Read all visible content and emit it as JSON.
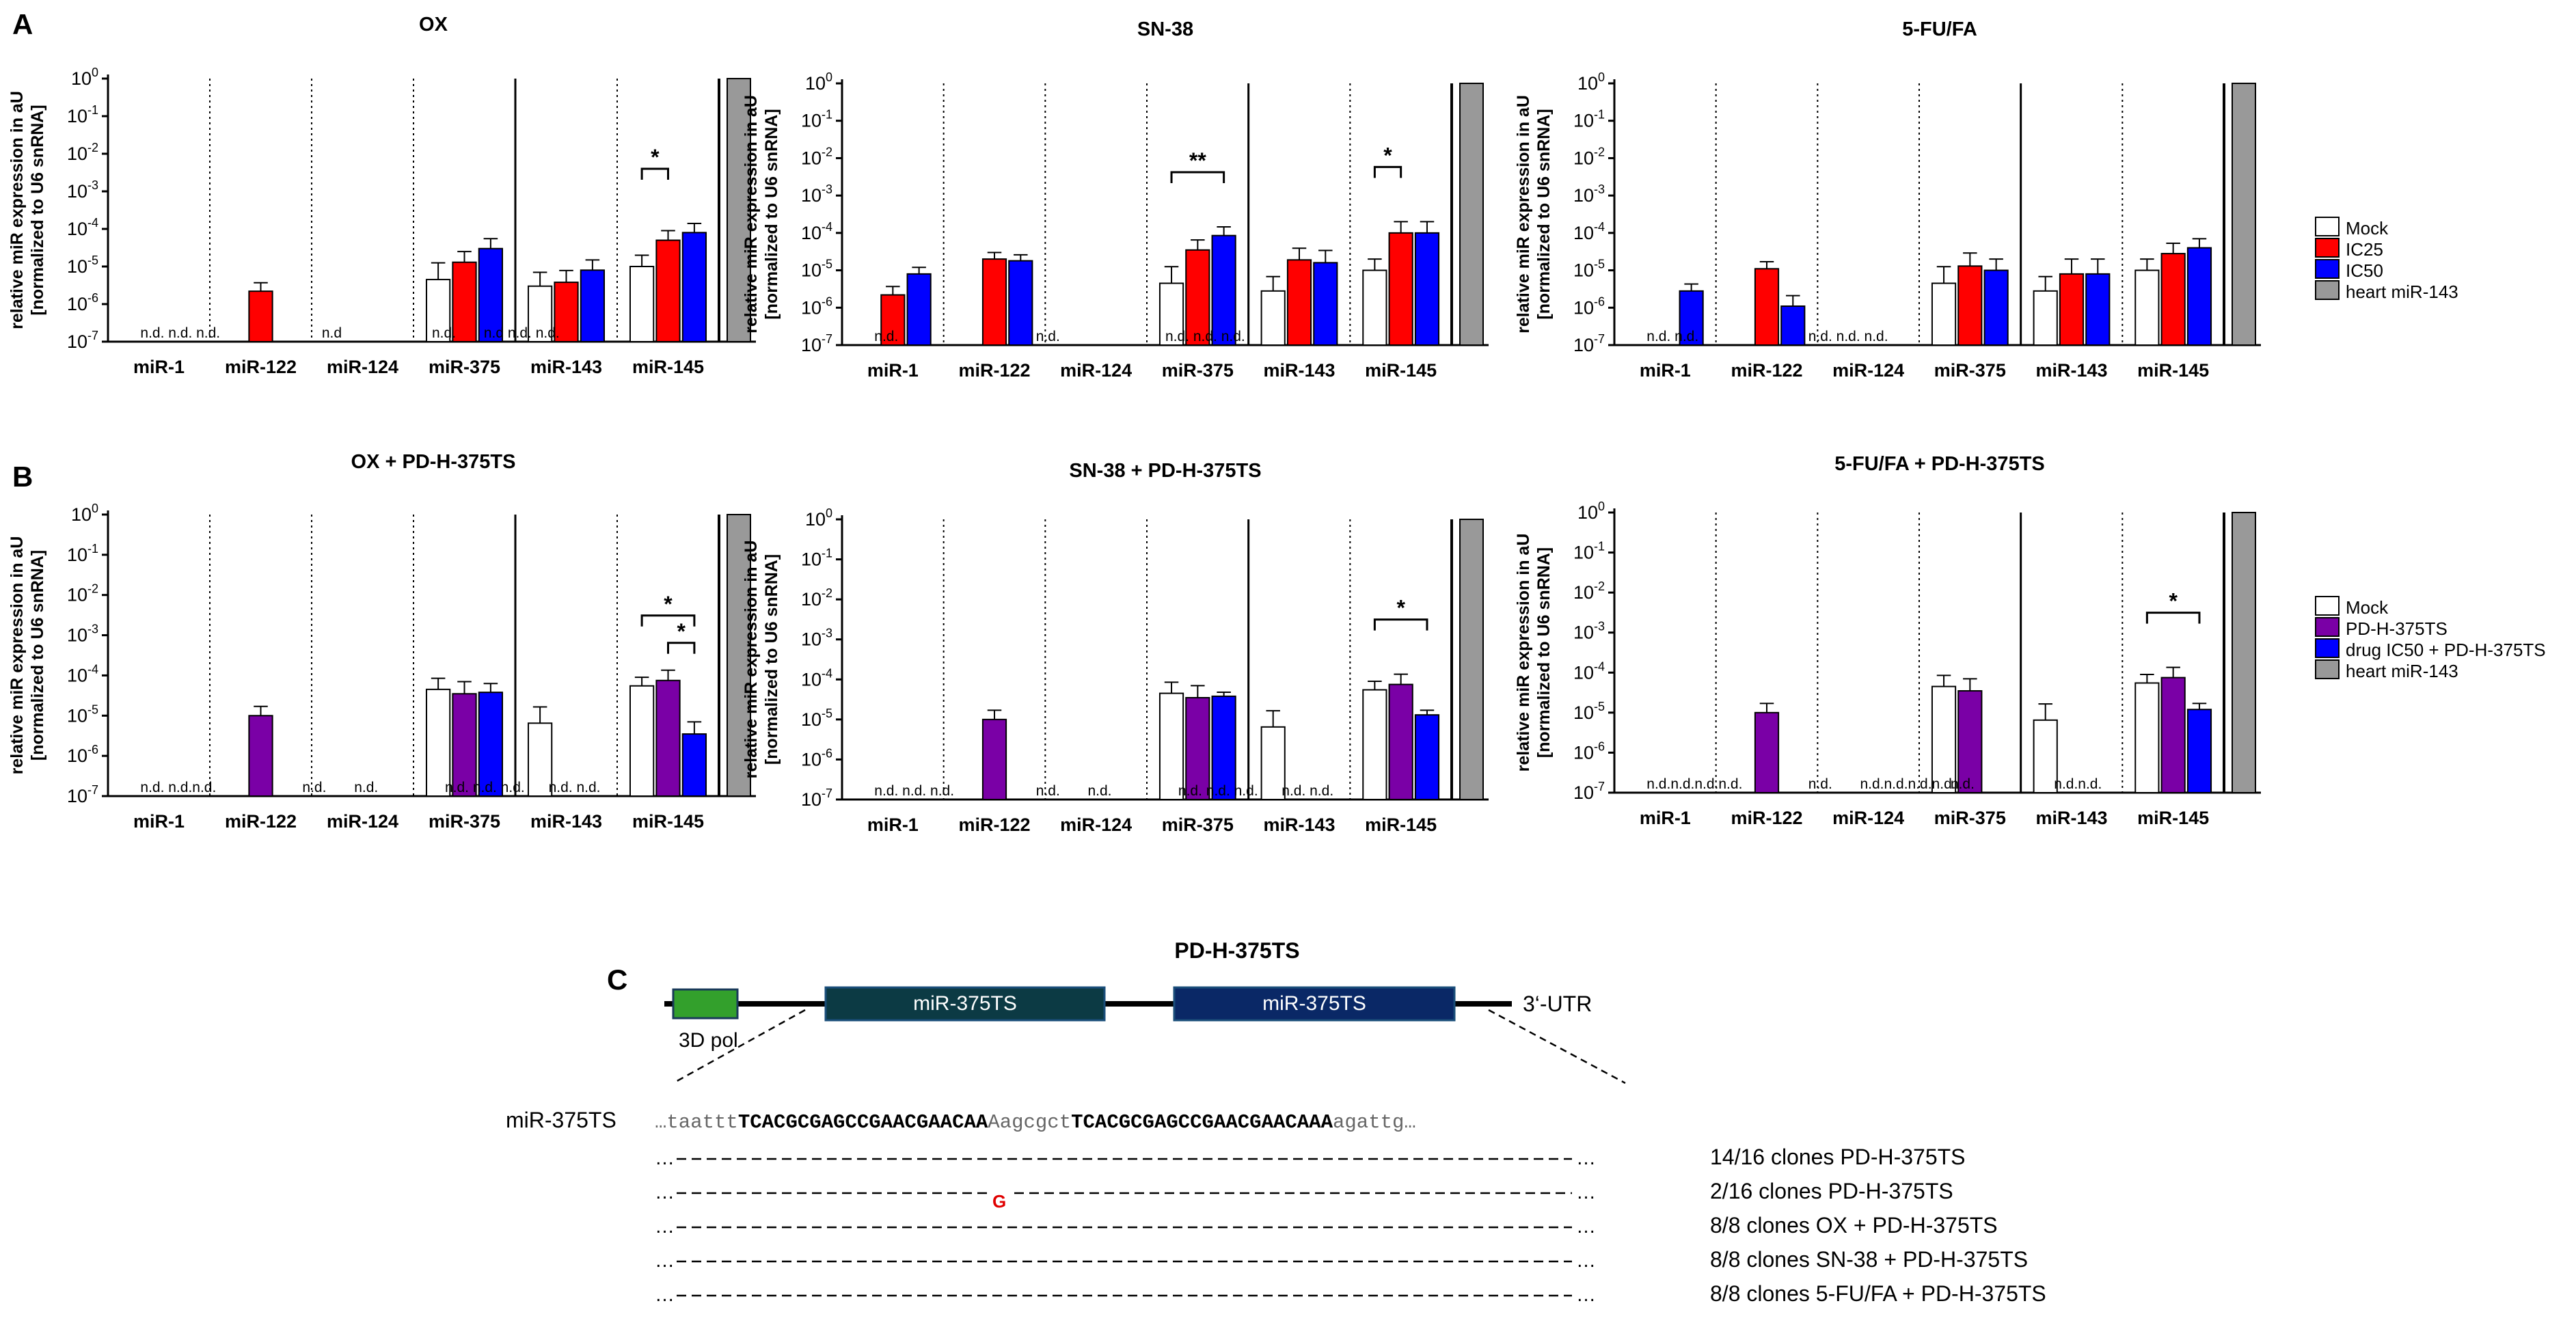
{
  "panel_letters": [
    "A",
    "B",
    "C"
  ],
  "ylabel_line1": "relative miR expression in aU",
  "ylabel_line2": "[normalized to U6 snRNA]",
  "y_tick_exponents": [
    "0",
    "-1",
    "-2",
    "-3",
    "-4",
    "-5",
    "-6",
    "-7"
  ],
  "y_tick_base": "10",
  "categories": [
    "miR-1",
    "miR-122",
    "miR-124",
    "miR-375",
    "miR-143",
    "miR-145"
  ],
  "nd_label": "n.d.",
  "legend_A": {
    "items": [
      "Mock",
      "IC25",
      "IC50",
      "heart miR-143"
    ],
    "colors": [
      "#ffffff",
      "#ff0000",
      "#0000ff",
      "#999999"
    ]
  },
  "legend_B": {
    "items": [
      "Mock",
      "PD-H-375TS",
      "drug IC50 + PD-H-375TS",
      "heart miR-143"
    ],
    "colors": [
      "#ffffff",
      "#7a00a6",
      "#0000ff",
      "#999999"
    ]
  },
  "chart_data": [
    {
      "type": "bar",
      "title": "OX",
      "categories": [
        "miR-1",
        "miR-122",
        "miR-124",
        "miR-375",
        "miR-143",
        "miR-145"
      ],
      "series": [
        {
          "name": "Mock",
          "values": [
            null,
            null,
            null,
            4.5e-06,
            3e-06,
            1e-05
          ],
          "errors": [
            null,
            null,
            null,
            8e-06,
            4e-06,
            1e-05
          ]
        },
        {
          "name": "IC25",
          "values": [
            null,
            2.2e-06,
            null,
            1.3e-05,
            3.8e-06,
            5e-05
          ],
          "errors": [
            null,
            1.5e-06,
            null,
            1.2e-05,
            4e-06,
            4e-05
          ]
        },
        {
          "name": "IC50",
          "values": [
            null,
            null,
            null,
            3e-05,
            8e-06,
            8e-05
          ],
          "errors": [
            null,
            null,
            null,
            2.5e-05,
            7e-06,
            6e-05
          ]
        }
      ],
      "reference": {
        "name": "heart miR-143",
        "value": 1
      },
      "nd_text": "n.d. n.d. n.d.|n.d|n.d.|n.d n.d. n.d.",
      "significance": [
        "*"
      ],
      "ylabel": "relative miR expression in aU [normalized to U6 snRNA]",
      "ylim": [
        1e-07,
        1
      ]
    },
    {
      "type": "bar",
      "title": "SN-38",
      "categories": [
        "miR-1",
        "miR-122",
        "miR-124",
        "miR-375",
        "miR-143",
        "miR-145"
      ],
      "series": [
        {
          "name": "Mock",
          "values": [
            null,
            null,
            null,
            4.5e-06,
            2.8e-06,
            1e-05
          ],
          "errors": [
            null,
            null,
            null,
            8e-06,
            4e-06,
            1e-05
          ]
        },
        {
          "name": "IC25",
          "values": [
            2.2e-06,
            2e-05,
            null,
            3.5e-05,
            1.9e-05,
            0.0001
          ],
          "errors": [
            1.5e-06,
            1e-05,
            null,
            3e-05,
            2e-05,
            0.0001
          ]
        },
        {
          "name": "IC50",
          "values": [
            8e-06,
            1.8e-05,
            null,
            8.5e-05,
            1.6e-05,
            0.0001
          ],
          "errors": [
            4e-06,
            8e-06,
            null,
            6e-05,
            1.8e-05,
            0.0001
          ]
        }
      ],
      "reference": {
        "name": "heart miR-143",
        "value": 1
      },
      "nd_text": "n.d.|n.d.|n.d. n.d. n.d.",
      "significance": [
        "**",
        "*"
      ],
      "ylabel": "relative miR expression in aU [normalized to U6 snRNA]",
      "ylim": [
        1e-07,
        1
      ]
    },
    {
      "type": "bar",
      "title": "5-FU/FA",
      "categories": [
        "miR-1",
        "miR-122",
        "miR-124",
        "miR-375",
        "miR-143",
        "miR-145"
      ],
      "series": [
        {
          "name": "Mock",
          "values": [
            null,
            null,
            null,
            4.5e-06,
            2.8e-06,
            1e-05
          ],
          "errors": [
            null,
            null,
            null,
            8e-06,
            4e-06,
            1e-05
          ]
        },
        {
          "name": "IC25",
          "values": [
            null,
            1.1e-05,
            null,
            1.3e-05,
            8e-06,
            2.8e-05
          ],
          "errors": [
            null,
            6e-06,
            null,
            1.6e-05,
            1.2e-05,
            2.5e-05
          ]
        },
        {
          "name": "IC50",
          "values": [
            2.8e-06,
            1.1e-06,
            null,
            1e-05,
            8e-06,
            4e-05
          ],
          "errors": [
            1.5e-06,
            1e-06,
            null,
            1e-05,
            1.2e-05,
            3e-05
          ]
        }
      ],
      "reference": {
        "name": "heart miR-143",
        "value": 1
      },
      "nd_text": "n.d. n.d.|n.d. n.d. n.d.",
      "significance": [],
      "ylabel": "relative miR expression in aU [normalized to U6 snRNA]",
      "ylim": [
        1e-07,
        1
      ]
    },
    {
      "type": "bar",
      "title": "OX + PD-H-375TS",
      "categories": [
        "miR-1",
        "miR-122",
        "miR-124",
        "miR-375",
        "miR-143",
        "miR-145"
      ],
      "series": [
        {
          "name": "Mock",
          "values": [
            null,
            null,
            null,
            4.5e-05,
            6.5e-06,
            5.5e-05
          ],
          "errors": [
            null,
            null,
            null,
            4e-05,
            1e-05,
            3.5e-05
          ]
        },
        {
          "name": "PD-H-375TS",
          "values": [
            null,
            1e-05,
            null,
            3.5e-05,
            null,
            7.5e-05
          ],
          "errors": [
            null,
            7e-06,
            null,
            3.5e-05,
            null,
            6e-05
          ]
        },
        {
          "name": "drug IC50 + PD-H-375TS",
          "values": [
            null,
            null,
            null,
            3.8e-05,
            null,
            3.5e-06
          ],
          "errors": [
            null,
            null,
            null,
            2.5e-05,
            null,
            3.5e-06
          ]
        }
      ],
      "reference": {
        "name": "heart miR-143",
        "value": 1
      },
      "nd_text": "n.d. n.d.n.d.|n.d.|n.d.|n.d. n.d. n.d.|n.d. n.d.",
      "significance": [
        "*",
        "*"
      ],
      "ylabel": "relative miR expression in aU [normalized to U6 snRNA]",
      "ylim": [
        1e-07,
        1
      ]
    },
    {
      "type": "bar",
      "title": "SN-38 + PD-H-375TS",
      "categories": [
        "miR-1",
        "miR-122",
        "miR-124",
        "miR-375",
        "miR-143",
        "miR-145"
      ],
      "series": [
        {
          "name": "Mock",
          "values": [
            null,
            null,
            null,
            4.5e-05,
            6.5e-06,
            5.5e-05
          ],
          "errors": [
            null,
            null,
            null,
            4e-05,
            1e-05,
            3.5e-05
          ]
        },
        {
          "name": "PD-H-375TS",
          "values": [
            null,
            1e-05,
            null,
            3.5e-05,
            null,
            7.5e-05
          ],
          "errors": [
            null,
            7e-06,
            null,
            3.5e-05,
            null,
            6e-05
          ]
        },
        {
          "name": "drug IC50 + PD-H-375TS",
          "values": [
            null,
            null,
            null,
            3.8e-05,
            null,
            1.3e-05
          ],
          "errors": [
            null,
            null,
            null,
            1e-05,
            null,
            4e-06
          ]
        }
      ],
      "reference": {
        "name": "heart miR-143",
        "value": 1
      },
      "nd_text": "n.d. n.d. n.d.|n.d.|n.d.|n.d. n.d. n.d.|n.d. n.d.",
      "significance": [
        "*"
      ],
      "ylabel": "relative miR expression in aU [normalized to U6 snRNA]",
      "ylim": [
        1e-07,
        1
      ]
    },
    {
      "type": "bar",
      "title": "5-FU/FA + PD-H-375TS",
      "categories": [
        "miR-1",
        "miR-122",
        "miR-124",
        "miR-375",
        "miR-143",
        "miR-145"
      ],
      "series": [
        {
          "name": "Mock",
          "values": [
            null,
            null,
            null,
            4.5e-05,
            6.5e-06,
            5.5e-05
          ],
          "errors": [
            null,
            null,
            null,
            4e-05,
            1e-05,
            3.5e-05
          ]
        },
        {
          "name": "PD-H-375TS",
          "values": [
            null,
            1e-05,
            null,
            3.5e-05,
            null,
            7.5e-05
          ],
          "errors": [
            null,
            7e-06,
            null,
            3.5e-05,
            null,
            6e-05
          ]
        },
        {
          "name": "drug IC50 + PD-H-375TS",
          "values": [
            null,
            null,
            null,
            null,
            null,
            1.2e-05
          ],
          "errors": [
            null,
            null,
            null,
            null,
            null,
            5e-06
          ]
        }
      ],
      "reference": {
        "name": "heart miR-143",
        "value": 1
      },
      "nd_text": "n.d.n.d.n.d.n.d.|n.d.|n.d.n.d.n.d.n.d.|n.d.|n.d.n.d.",
      "significance": [
        "*"
      ],
      "ylabel": "relative miR expression in aU [normalized to U6 snRNA]",
      "ylim": [
        1e-07,
        1
      ]
    }
  ],
  "diagram": {
    "title": "PD-H-375TS",
    "box_label_1": "miR-375TS",
    "box_label_2": "miR-375TS",
    "label_3dpol": "3D pol",
    "label_utr": "3‘-UTR",
    "seq_label": "miR-375TS",
    "seq_prefix": "…taattt",
    "seq_bold1": "TCACGCGAGCCGAACGAACAA",
    "seq_mid": "Aagcgct",
    "seq_bold2": "TCACGCGAGCCGAACGAACAAA",
    "seq_suffix": "agattg…",
    "mutation": "G",
    "clone_labels": [
      "14/16 clones PD-H-375TS",
      "2/16 clones PD-H-375TS",
      "8/8 clones OX + PD-H-375TS",
      "8/8 clones SN-38 + PD-H-375TS",
      "8/8 clones 5-FU/FA + PD-H-375TS"
    ]
  }
}
